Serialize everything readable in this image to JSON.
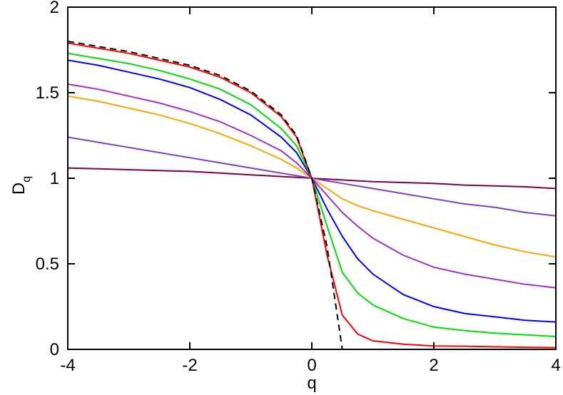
{
  "chart_data": {
    "type": "line",
    "xlabel": "q",
    "ylabel": {
      "main": "D",
      "sub": "q"
    },
    "xlim": [
      -4,
      4
    ],
    "ylim": [
      0,
      2
    ],
    "xticks": [
      -4,
      -2,
      0,
      2,
      4
    ],
    "yticks": [
      0,
      0.5,
      1,
      1.5,
      2
    ],
    "x": [
      -4,
      -3.5,
      -3,
      -2.5,
      -2,
      -1.5,
      -1,
      -0.5,
      -0.25,
      0,
      0.25,
      0.5,
      0.75,
      1,
      1.5,
      2,
      2.5,
      3,
      3.5,
      4
    ],
    "series": [
      {
        "color": "#800040",
        "values": [
          1.06,
          1.055,
          1.05,
          1.045,
          1.04,
          1.03,
          1.02,
          1.01,
          1.005,
          1.0,
          0.995,
          0.99,
          0.985,
          0.98,
          0.975,
          0.97,
          0.96,
          0.955,
          0.95,
          0.94
        ]
      },
      {
        "color": "#7b3fc8",
        "values": [
          1.24,
          1.21,
          1.18,
          1.15,
          1.12,
          1.09,
          1.06,
          1.03,
          1.015,
          1.0,
          0.985,
          0.97,
          0.955,
          0.94,
          0.91,
          0.88,
          0.85,
          0.83,
          0.8,
          0.78
        ]
      },
      {
        "color": "#ffa500",
        "values": [
          1.48,
          1.45,
          1.41,
          1.37,
          1.32,
          1.26,
          1.19,
          1.11,
          1.06,
          1.0,
          0.94,
          0.88,
          0.84,
          0.81,
          0.76,
          0.71,
          0.66,
          0.61,
          0.57,
          0.54
        ]
      },
      {
        "color": "#a030d0",
        "values": [
          1.55,
          1.52,
          1.48,
          1.44,
          1.39,
          1.33,
          1.25,
          1.16,
          1.09,
          1.0,
          0.9,
          0.8,
          0.72,
          0.65,
          0.55,
          0.48,
          0.44,
          0.41,
          0.38,
          0.36
        ]
      },
      {
        "color": "#0000ff",
        "values": [
          1.69,
          1.66,
          1.62,
          1.58,
          1.53,
          1.46,
          1.37,
          1.24,
          1.15,
          1.0,
          0.82,
          0.66,
          0.53,
          0.44,
          0.32,
          0.25,
          0.21,
          0.19,
          0.17,
          0.16
        ]
      },
      {
        "color": "#00e000",
        "values": [
          1.73,
          1.7,
          1.67,
          1.63,
          1.58,
          1.52,
          1.43,
          1.29,
          1.19,
          1.0,
          0.72,
          0.45,
          0.33,
          0.26,
          0.18,
          0.13,
          0.11,
          0.095,
          0.085,
          0.075
        ]
      },
      {
        "color": "#ff0000",
        "values": [
          1.79,
          1.76,
          1.73,
          1.69,
          1.65,
          1.59,
          1.5,
          1.36,
          1.24,
          1.0,
          0.55,
          0.2,
          0.09,
          0.05,
          0.03,
          0.02,
          0.018,
          0.015,
          0.012,
          0.01
        ]
      },
      {
        "color": "#000000",
        "dashed": true,
        "values": [
          1.8,
          1.77,
          1.74,
          1.7,
          1.66,
          1.6,
          1.51,
          1.37,
          1.25,
          1.0,
          0.6,
          0,
          null,
          null,
          null,
          null,
          null,
          null,
          null,
          null
        ]
      }
    ]
  }
}
